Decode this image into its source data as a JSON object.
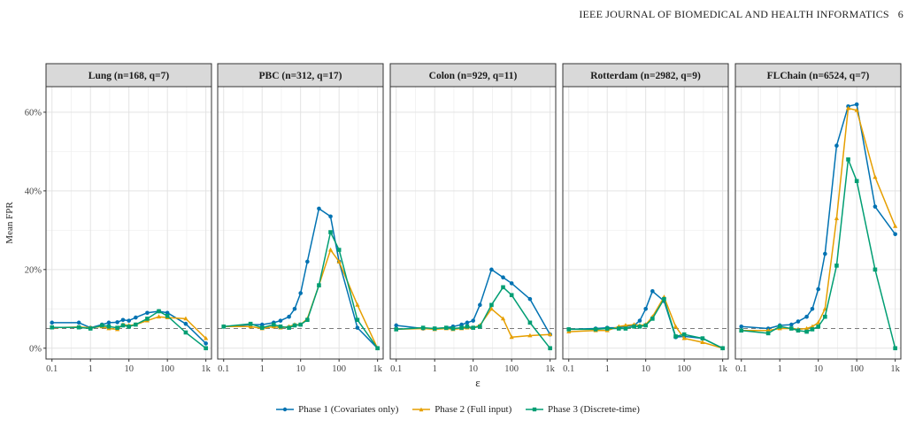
{
  "header": {
    "journal": "IEEE JOURNAL OF BIOMEDICAL AND HEALTH INFORMATICS",
    "page": "6"
  },
  "chart_data": {
    "type": "line",
    "xlabel": "ε",
    "ylabel": "Mean FPR",
    "x_scale": "log",
    "x_ticks": [
      "0.1",
      "1",
      "10",
      "100",
      "1k"
    ],
    "y_ticks": [
      "0%",
      "20%",
      "40%",
      "60%"
    ],
    "ylim": [
      0,
      0.65
    ],
    "reference_line": 0.05,
    "grid": true,
    "legend_position": "bottom",
    "colors": {
      "phase1": "#0072B2",
      "phase2": "#E69F00",
      "phase3": "#009E73"
    },
    "series_names": [
      "Phase 1 (Covariates only)",
      "Phase 2 (Full input)",
      "Phase 3 (Discrete-time)"
    ],
    "panels": [
      {
        "title": "Lung (n=168, q=7)",
        "series": [
          {
            "name": "Phase 1 (Covariates only)",
            "x": [
              0.1,
              0.5,
              1,
              2,
              3,
              5,
              7,
              10,
              15,
              30,
              60,
              100,
              300,
              1000
            ],
            "y": [
              0.065,
              0.065,
              0.052,
              0.06,
              0.065,
              0.066,
              0.072,
              0.07,
              0.078,
              0.09,
              0.094,
              0.09,
              0.062,
              0.012
            ]
          },
          {
            "name": "Phase 2 (Full input)",
            "x": [
              0.1,
              0.5,
              1,
              2,
              3,
              5,
              7,
              10,
              15,
              30,
              60,
              100,
              300,
              1000
            ],
            "y": [
              0.052,
              0.054,
              0.052,
              0.055,
              0.05,
              0.048,
              0.06,
              0.058,
              0.06,
              0.07,
              0.08,
              0.078,
              0.075,
              0.025
            ]
          },
          {
            "name": "Phase 3 (Discrete-time)",
            "x": [
              0.1,
              0.5,
              1,
              2,
              3,
              5,
              7,
              10,
              15,
              30,
              60,
              100,
              300,
              1000
            ],
            "y": [
              0.053,
              0.053,
              0.05,
              0.058,
              0.055,
              0.052,
              0.058,
              0.055,
              0.06,
              0.075,
              0.094,
              0.082,
              0.04,
              0.0
            ]
          }
        ]
      },
      {
        "title": "PBC (n=312, q=17)",
        "series": [
          {
            "name": "Phase 1 (Covariates only)",
            "x": [
              0.1,
              0.5,
              1,
              2,
              3,
              5,
              7,
              10,
              15,
              30,
              60,
              100,
              300,
              1000
            ],
            "y": [
              0.055,
              0.06,
              0.06,
              0.065,
              0.07,
              0.08,
              0.1,
              0.14,
              0.22,
              0.355,
              0.335,
              0.22,
              0.052,
              0.0
            ]
          },
          {
            "name": "Phase 2 (Full input)",
            "x": [
              0.1,
              0.5,
              1,
              2,
              3,
              5,
              7,
              10,
              15,
              30,
              60,
              100,
              300,
              1000
            ],
            "y": [
              0.055,
              0.055,
              0.05,
              0.055,
              0.052,
              0.055,
              0.06,
              0.06,
              0.075,
              0.16,
              0.25,
              0.22,
              0.11,
              0.0
            ]
          },
          {
            "name": "Phase 3 (Discrete-time)",
            "x": [
              0.1,
              0.5,
              1,
              2,
              3,
              5,
              7,
              10,
              15,
              30,
              60,
              100,
              300,
              1000
            ],
            "y": [
              0.055,
              0.062,
              0.052,
              0.06,
              0.055,
              0.052,
              0.058,
              0.06,
              0.072,
              0.16,
              0.295,
              0.25,
              0.072,
              0.0
            ]
          }
        ]
      },
      {
        "title": "Colon (n=929, q=11)",
        "series": [
          {
            "name": "Phase 1 (Covariates only)",
            "x": [
              0.1,
              0.5,
              1,
              2,
              3,
              5,
              7,
              10,
              15,
              30,
              60,
              100,
              300,
              1000
            ],
            "y": [
              0.058,
              0.05,
              0.05,
              0.052,
              0.055,
              0.06,
              0.065,
              0.07,
              0.11,
              0.2,
              0.18,
              0.165,
              0.125,
              0.035
            ]
          },
          {
            "name": "Phase 2 (Full input)",
            "x": [
              0.1,
              0.5,
              1,
              2,
              3,
              5,
              7,
              10,
              15,
              30,
              60,
              100,
              300,
              1000
            ],
            "y": [
              0.048,
              0.05,
              0.048,
              0.05,
              0.048,
              0.05,
              0.052,
              0.052,
              0.058,
              0.1,
              0.075,
              0.028,
              0.032,
              0.035
            ]
          },
          {
            "name": "Phase 3 (Discrete-time)",
            "x": [
              0.1,
              0.5,
              1,
              2,
              3,
              5,
              7,
              10,
              15,
              30,
              60,
              100,
              300,
              1000
            ],
            "y": [
              0.048,
              0.052,
              0.05,
              0.052,
              0.05,
              0.052,
              0.055,
              0.052,
              0.055,
              0.11,
              0.155,
              0.135,
              0.065,
              0.0
            ]
          }
        ]
      },
      {
        "title": "Rotterdam (n=2982, q=9)",
        "series": [
          {
            "name": "Phase 1 (Covariates only)",
            "x": [
              0.1,
              0.5,
              1,
              2,
              3,
              5,
              7,
              10,
              15,
              30,
              60,
              100,
              300,
              1000
            ],
            "y": [
              0.048,
              0.05,
              0.052,
              0.052,
              0.055,
              0.058,
              0.07,
              0.1,
              0.145,
              0.12,
              0.028,
              0.03,
              0.025,
              0.0
            ]
          },
          {
            "name": "Phase 2 (Full input)",
            "x": [
              0.1,
              0.5,
              1,
              2,
              3,
              5,
              7,
              10,
              15,
              30,
              60,
              100,
              300,
              1000
            ],
            "y": [
              0.042,
              0.045,
              0.045,
              0.055,
              0.058,
              0.06,
              0.058,
              0.06,
              0.08,
              0.13,
              0.055,
              0.025,
              0.015,
              0.0
            ]
          },
          {
            "name": "Phase 3 (Discrete-time)",
            "x": [
              0.1,
              0.5,
              1,
              2,
              3,
              5,
              7,
              10,
              15,
              30,
              60,
              100,
              300,
              1000
            ],
            "y": [
              0.048,
              0.048,
              0.05,
              0.05,
              0.05,
              0.055,
              0.055,
              0.058,
              0.075,
              0.125,
              0.03,
              0.035,
              0.025,
              0.0
            ]
          }
        ]
      },
      {
        "title": "FLChain (n=6524, q=7)",
        "series": [
          {
            "name": "Phase 1 (Covariates only)",
            "x": [
              0.1,
              0.5,
              1,
              2,
              3,
              5,
              7,
              10,
              15,
              30,
              60,
              100,
              300,
              1000
            ],
            "y": [
              0.055,
              0.05,
              0.058,
              0.06,
              0.068,
              0.08,
              0.1,
              0.15,
              0.24,
              0.515,
              0.615,
              0.62,
              0.36,
              0.29
            ]
          },
          {
            "name": "Phase 2 (Full input)",
            "x": [
              0.1,
              0.5,
              1,
              2,
              3,
              5,
              7,
              10,
              15,
              30,
              60,
              100,
              300,
              1000
            ],
            "y": [
              0.045,
              0.045,
              0.05,
              0.05,
              0.048,
              0.05,
              0.055,
              0.065,
              0.1,
              0.33,
              0.61,
              0.605,
              0.435,
              0.31
            ]
          },
          {
            "name": "Phase 3 (Discrete-time)",
            "x": [
              0.1,
              0.5,
              1,
              2,
              3,
              5,
              7,
              10,
              15,
              30,
              60,
              100,
              300,
              1000
            ],
            "y": [
              0.045,
              0.038,
              0.055,
              0.05,
              0.045,
              0.042,
              0.048,
              0.055,
              0.08,
              0.21,
              0.48,
              0.425,
              0.2,
              0.0
            ]
          }
        ]
      }
    ]
  }
}
